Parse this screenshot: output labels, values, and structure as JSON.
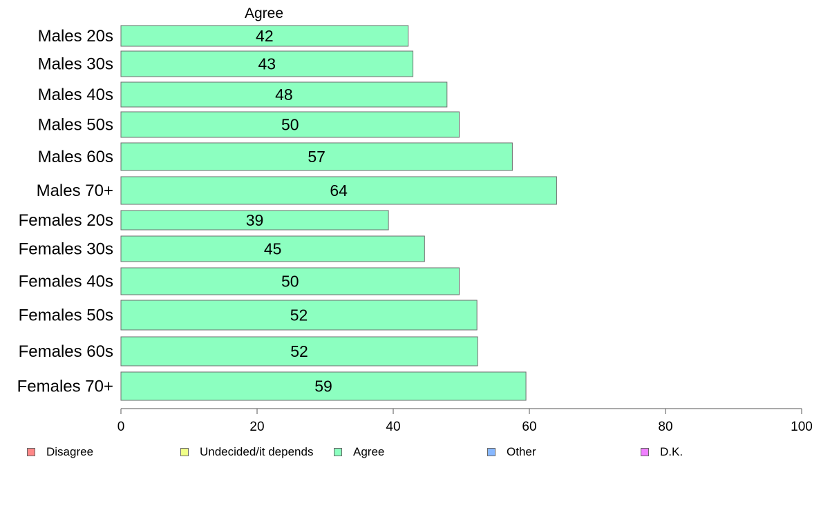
{
  "chart_data": {
    "type": "bar",
    "orientation": "horizontal",
    "title": "",
    "series_header": "Agree",
    "categories": [
      "Males 20s",
      "Males 30s",
      "Males 40s",
      "Males 50s",
      "Males 60s",
      "Males 70+",
      "Females 20s",
      "Females 30s",
      "Females 40s",
      "Females 50s",
      "Females 60s",
      "Females 70+"
    ],
    "series": [
      {
        "name": "Agree",
        "color": "#8cffc0",
        "values": [
          42.2,
          42.9,
          47.9,
          49.7,
          57.5,
          64.0,
          39.3,
          44.6,
          49.7,
          52.3,
          52.4,
          59.5
        ],
        "labels": [
          "42",
          "43",
          "48",
          "50",
          "57",
          "64",
          "39",
          "45",
          "50",
          "52",
          "52",
          "59"
        ]
      }
    ],
    "xlim": [
      0,
      100
    ],
    "xticks": [
      0,
      20,
      40,
      60,
      80,
      100
    ],
    "xlabel": "",
    "ylabel": "",
    "grid": false,
    "legend_position": "bottom"
  },
  "legend": [
    {
      "label": "Disagree",
      "color": "#ff8888"
    },
    {
      "label": "Undecided/it depends",
      "color": "#f0ff88"
    },
    {
      "label": "Agree",
      "color": "#8cffc0"
    },
    {
      "label": "Other",
      "color": "#88b8ff"
    },
    {
      "label": "D.K.",
      "color": "#f080ff"
    }
  ]
}
